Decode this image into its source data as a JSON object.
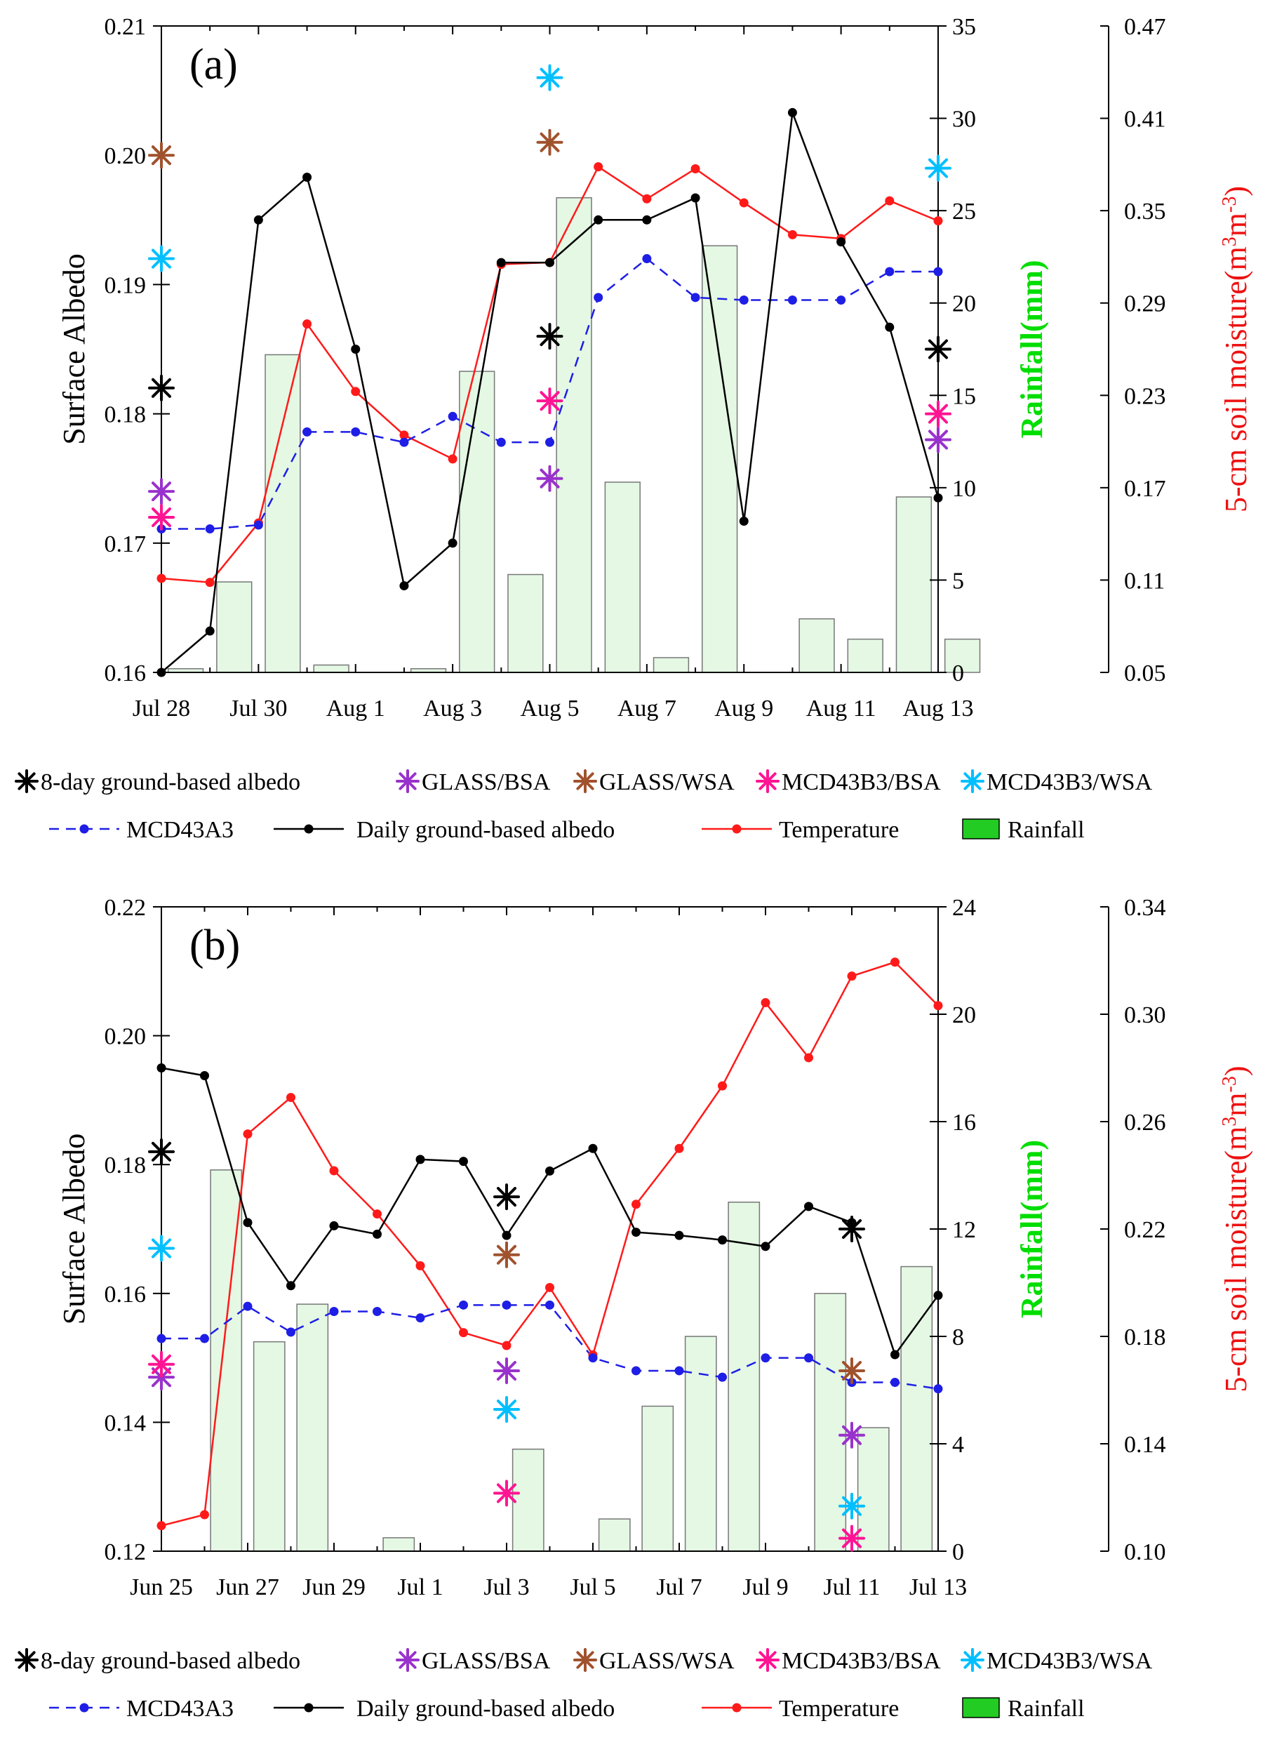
{
  "chart_data": [
    {
      "type": "line",
      "panel_label": "(a)",
      "ylabel": "Surface Albedo",
      "y2label": "Rainfall(mm)",
      "y3label_base": "5-cm soil moisture(m",
      "y3label_sup1": "3",
      "y3label_mid": "m",
      "y3label_sup2": "-3",
      "y3label_end": ")",
      "ylim": [
        0.16,
        0.21
      ],
      "y2lim": [
        0,
        35
      ],
      "y3lim": [
        0.05,
        0.47
      ],
      "yticks": [
        "0.16",
        "0.17",
        "0.18",
        "0.19",
        "0.20",
        "0.21"
      ],
      "y2ticks": [
        "0",
        "5",
        "10",
        "15",
        "20",
        "25",
        "30",
        "35"
      ],
      "y3ticks": [
        "0.05",
        "0.11",
        "0.17",
        "0.23",
        "0.29",
        "0.35",
        "0.41",
        "0.47"
      ],
      "x_categories": [
        "Jul 28",
        "Jul 29",
        "Jul 30",
        "Jul 31",
        "Aug 1",
        "Aug 2",
        "Aug 3",
        "Aug 4",
        "Aug 5",
        "Aug 6",
        "Aug 7",
        "Aug 8",
        "Aug 9",
        "Aug 10",
        "Aug 11",
        "Aug 12",
        "Aug 13"
      ],
      "xtick_labels": [
        {
          "index": 0,
          "label": "Jul 28"
        },
        {
          "index": 2,
          "label": "Jul 30"
        },
        {
          "index": 4,
          "label": "Aug 1"
        },
        {
          "index": 6,
          "label": "Aug 3"
        },
        {
          "index": 8,
          "label": "Aug 5"
        },
        {
          "index": 10,
          "label": "Aug 7"
        },
        {
          "index": 12,
          "label": "Aug 9"
        },
        {
          "index": 14,
          "label": "Aug 11"
        },
        {
          "index": 16,
          "label": "Aug 13"
        }
      ],
      "rainfall": [
        0.2,
        4.9,
        17.2,
        0.4,
        0,
        0.2,
        16.3,
        5.3,
        25.7,
        10.3,
        0.8,
        23.1,
        0,
        2.9,
        1.8,
        9.5,
        1.8
      ],
      "mcd43a3": [
        0.1711,
        0.1711,
        0.1714,
        0.1786,
        0.1786,
        0.1778,
        0.1798,
        0.1778,
        0.1778,
        0.189,
        0.192,
        0.189,
        0.1888,
        0.1888,
        0.1888,
        0.191,
        0.191
      ],
      "daily_ground": [
        0.16,
        0.1632,
        0.195,
        0.1983,
        0.185,
        0.1667,
        0.17,
        0.1917,
        0.1917,
        0.195,
        0.195,
        0.1967,
        0.1717,
        0.2033,
        0.1933,
        0.1867,
        0.1735
      ],
      "temperature": [
        0.1111,
        0.1085,
        0.1471,
        0.2764,
        0.2325,
        0.2042,
        0.1887,
        0.3151,
        0.3164,
        0.3785,
        0.3577,
        0.3772,
        0.3551,
        0.3344,
        0.3319,
        0.3564,
        0.3434
      ],
      "markers": {
        "8day": [
          {
            "x": 0,
            "y": 0.182
          },
          {
            "x": 8,
            "y": 0.186
          },
          {
            "x": 16,
            "y": 0.185
          }
        ],
        "glass_bsa": [
          {
            "x": 0,
            "y": 0.174
          },
          {
            "x": 8,
            "y": 0.175
          },
          {
            "x": 16,
            "y": 0.178
          }
        ],
        "glass_wsa": [
          {
            "x": 0,
            "y": 0.2
          },
          {
            "x": 8,
            "y": 0.201
          }
        ],
        "mcd43b3_bsa": [
          {
            "x": 0,
            "y": 0.172
          },
          {
            "x": 8,
            "y": 0.181
          },
          {
            "x": 16,
            "y": 0.18
          }
        ],
        "mcd43b3_wsa": [
          {
            "x": 0,
            "y": 0.192
          },
          {
            "x": 8,
            "y": 0.206
          },
          {
            "x": 16,
            "y": 0.199
          }
        ]
      }
    },
    {
      "type": "line",
      "panel_label": "(b)",
      "ylabel": "Surface Albedo",
      "y2label": "Rainfall(mm)",
      "y3label_base": "5-cm soil moisture(m",
      "y3label_sup1": "3",
      "y3label_mid": "m",
      "y3label_sup2": "-3",
      "y3label_end": ")",
      "ylim": [
        0.12,
        0.22
      ],
      "y2lim": [
        0,
        24
      ],
      "y3lim": [
        0.1,
        0.34
      ],
      "yticks": [
        "0.12",
        "0.14",
        "0.16",
        "0.18",
        "0.20",
        "0.22"
      ],
      "y2ticks": [
        "0",
        "4",
        "8",
        "12",
        "16",
        "20",
        "24"
      ],
      "y3ticks": [
        "0.10",
        "0.14",
        "0.18",
        "0.22",
        "0.26",
        "0.30",
        "0.34"
      ],
      "x_categories": [
        "Jun 25",
        "Jun 26",
        "Jun 27",
        "Jun 28",
        "Jun 29",
        "Jun 30",
        "Jul 1",
        "Jul 2",
        "Jul 3",
        "Jul 4",
        "Jul 5",
        "Jul 6",
        "Jul 7",
        "Jul 8",
        "Jul 9",
        "Jul 10",
        "Jul 11",
        "Jul 12",
        "Jul 13"
      ],
      "xtick_labels": [
        {
          "index": 0,
          "label": "Jun 25"
        },
        {
          "index": 2,
          "label": "Jun 27"
        },
        {
          "index": 4,
          "label": "Jun 29"
        },
        {
          "index": 6,
          "label": "Jul 1"
        },
        {
          "index": 8,
          "label": "Jul 3"
        },
        {
          "index": 10,
          "label": "Jul 5"
        },
        {
          "index": 12,
          "label": "Jul 7"
        },
        {
          "index": 14,
          "label": "Jul 9"
        },
        {
          "index": 16,
          "label": "Jul 11"
        },
        {
          "index": 18,
          "label": "Jul 13"
        }
      ],
      "rainfall": [
        0,
        14.2,
        7.8,
        9.2,
        0,
        0.5,
        0,
        0,
        3.8,
        0,
        1.2,
        5.4,
        8.0,
        13.0,
        0,
        9.6,
        4.6,
        10.6,
        0
      ],
      "mcd43a3": [
        0.153,
        0.153,
        0.158,
        0.154,
        0.1572,
        0.1572,
        0.1562,
        0.1582,
        0.1582,
        0.1582,
        0.15,
        0.148,
        0.148,
        0.147,
        0.15,
        0.15,
        0.1462,
        0.1462,
        0.1452
      ],
      "daily_ground": [
        0.195,
        0.1938,
        0.171,
        0.1612,
        0.1705,
        0.1692,
        0.1808,
        0.1805,
        0.169,
        0.179,
        0.1825,
        0.1695,
        0.169,
        0.1683,
        0.1673,
        0.1735,
        0.171,
        0.1505,
        0.1597
      ],
      "temperature": [
        0.1095,
        0.1136,
        0.2554,
        0.269,
        0.2417,
        0.2256,
        0.2063,
        0.1814,
        0.1766,
        0.1982,
        0.1731,
        0.2292,
        0.25,
        0.2733,
        0.3043,
        0.2838,
        0.3142,
        0.3194,
        0.3032
      ],
      "markers": {
        "8day": [
          {
            "x": 0,
            "y": 0.182
          },
          {
            "x": 8,
            "y": 0.175
          },
          {
            "x": 16,
            "y": 0.17
          }
        ],
        "glass_bsa": [
          {
            "x": 0,
            "y": 0.147
          },
          {
            "x": 8,
            "y": 0.148
          },
          {
            "x": 16,
            "y": 0.138
          }
        ],
        "glass_wsa": [
          {
            "x": 8,
            "y": 0.166
          },
          {
            "x": 16,
            "y": 0.148
          }
        ],
        "mcd43b3_bsa": [
          {
            "x": 0,
            "y": 0.149
          },
          {
            "x": 8,
            "y": 0.129
          },
          {
            "x": 16,
            "y": 0.122
          }
        ],
        "mcd43b3_wsa": [
          {
            "x": 0,
            "y": 0.167
          },
          {
            "x": 8,
            "y": 0.142
          },
          {
            "x": 16,
            "y": 0.127
          }
        ]
      }
    }
  ],
  "legend": {
    "items": [
      {
        "key": "8day",
        "label": "8-day ground-based albedo"
      },
      {
        "key": "glass_bsa",
        "label": "GLASS/BSA"
      },
      {
        "key": "glass_wsa",
        "label": "GLASS/WSA"
      },
      {
        "key": "mcd43b3_bsa",
        "label": "MCD43B3/BSA"
      },
      {
        "key": "mcd43b3_wsa",
        "label": "MCD43B3/WSA"
      },
      {
        "key": "mcd43a3",
        "label": "MCD43A3"
      },
      {
        "key": "daily",
        "label": "Daily ground-based albedo"
      },
      {
        "key": "temperature",
        "label": "Temperature"
      },
      {
        "key": "rainfall",
        "label": "Rainfall"
      }
    ]
  },
  "colors": {
    "eightday": "#000000",
    "glass_bsa": "#9932CC",
    "glass_wsa": "#A0522D",
    "mcd43b3_bsa": "#FF1493",
    "mcd43b3_wsa": "#00BFFF",
    "mcd43a3": "#1E1EE6",
    "daily": "#000000",
    "temperature": "#FF1A1A",
    "rainfall_fill": "#E4F8E4",
    "rainfall_stroke": "#777777",
    "legend_rain_fill": "#22CC22",
    "rain_axis_label": "#00DD00",
    "soil_axis_label": "#EE1111"
  }
}
